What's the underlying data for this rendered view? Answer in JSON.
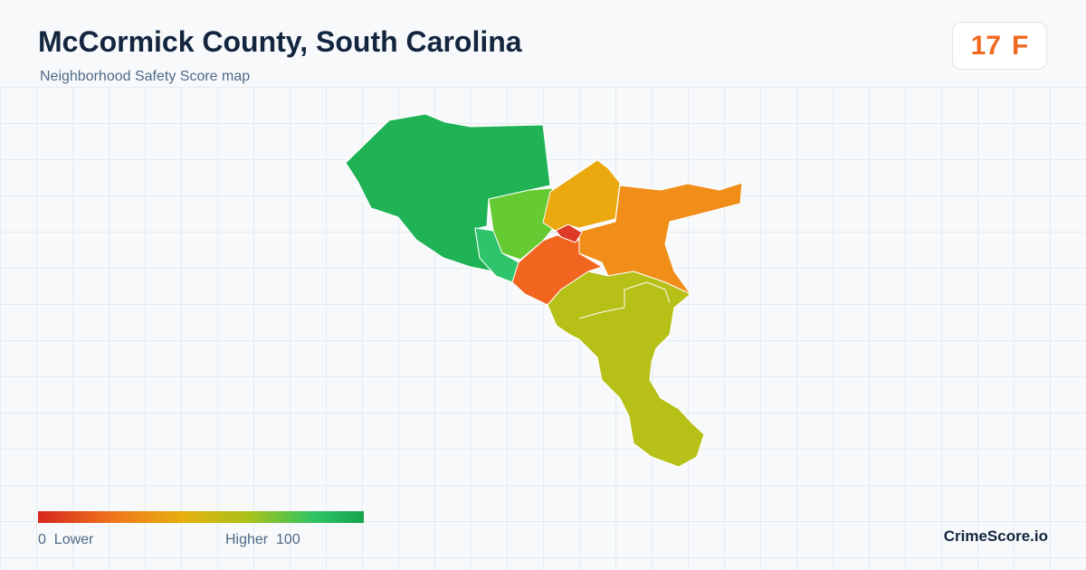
{
  "header": {
    "title": "McCormick County, South Carolina",
    "subtitle": "Neighborhood Safety Score map"
  },
  "score": {
    "value": 17,
    "grade": "F"
  },
  "legend": {
    "min": "0",
    "min_label": "Lower",
    "max_label": "Higher",
    "max": "100"
  },
  "brand": "CrimeScore.io"
}
